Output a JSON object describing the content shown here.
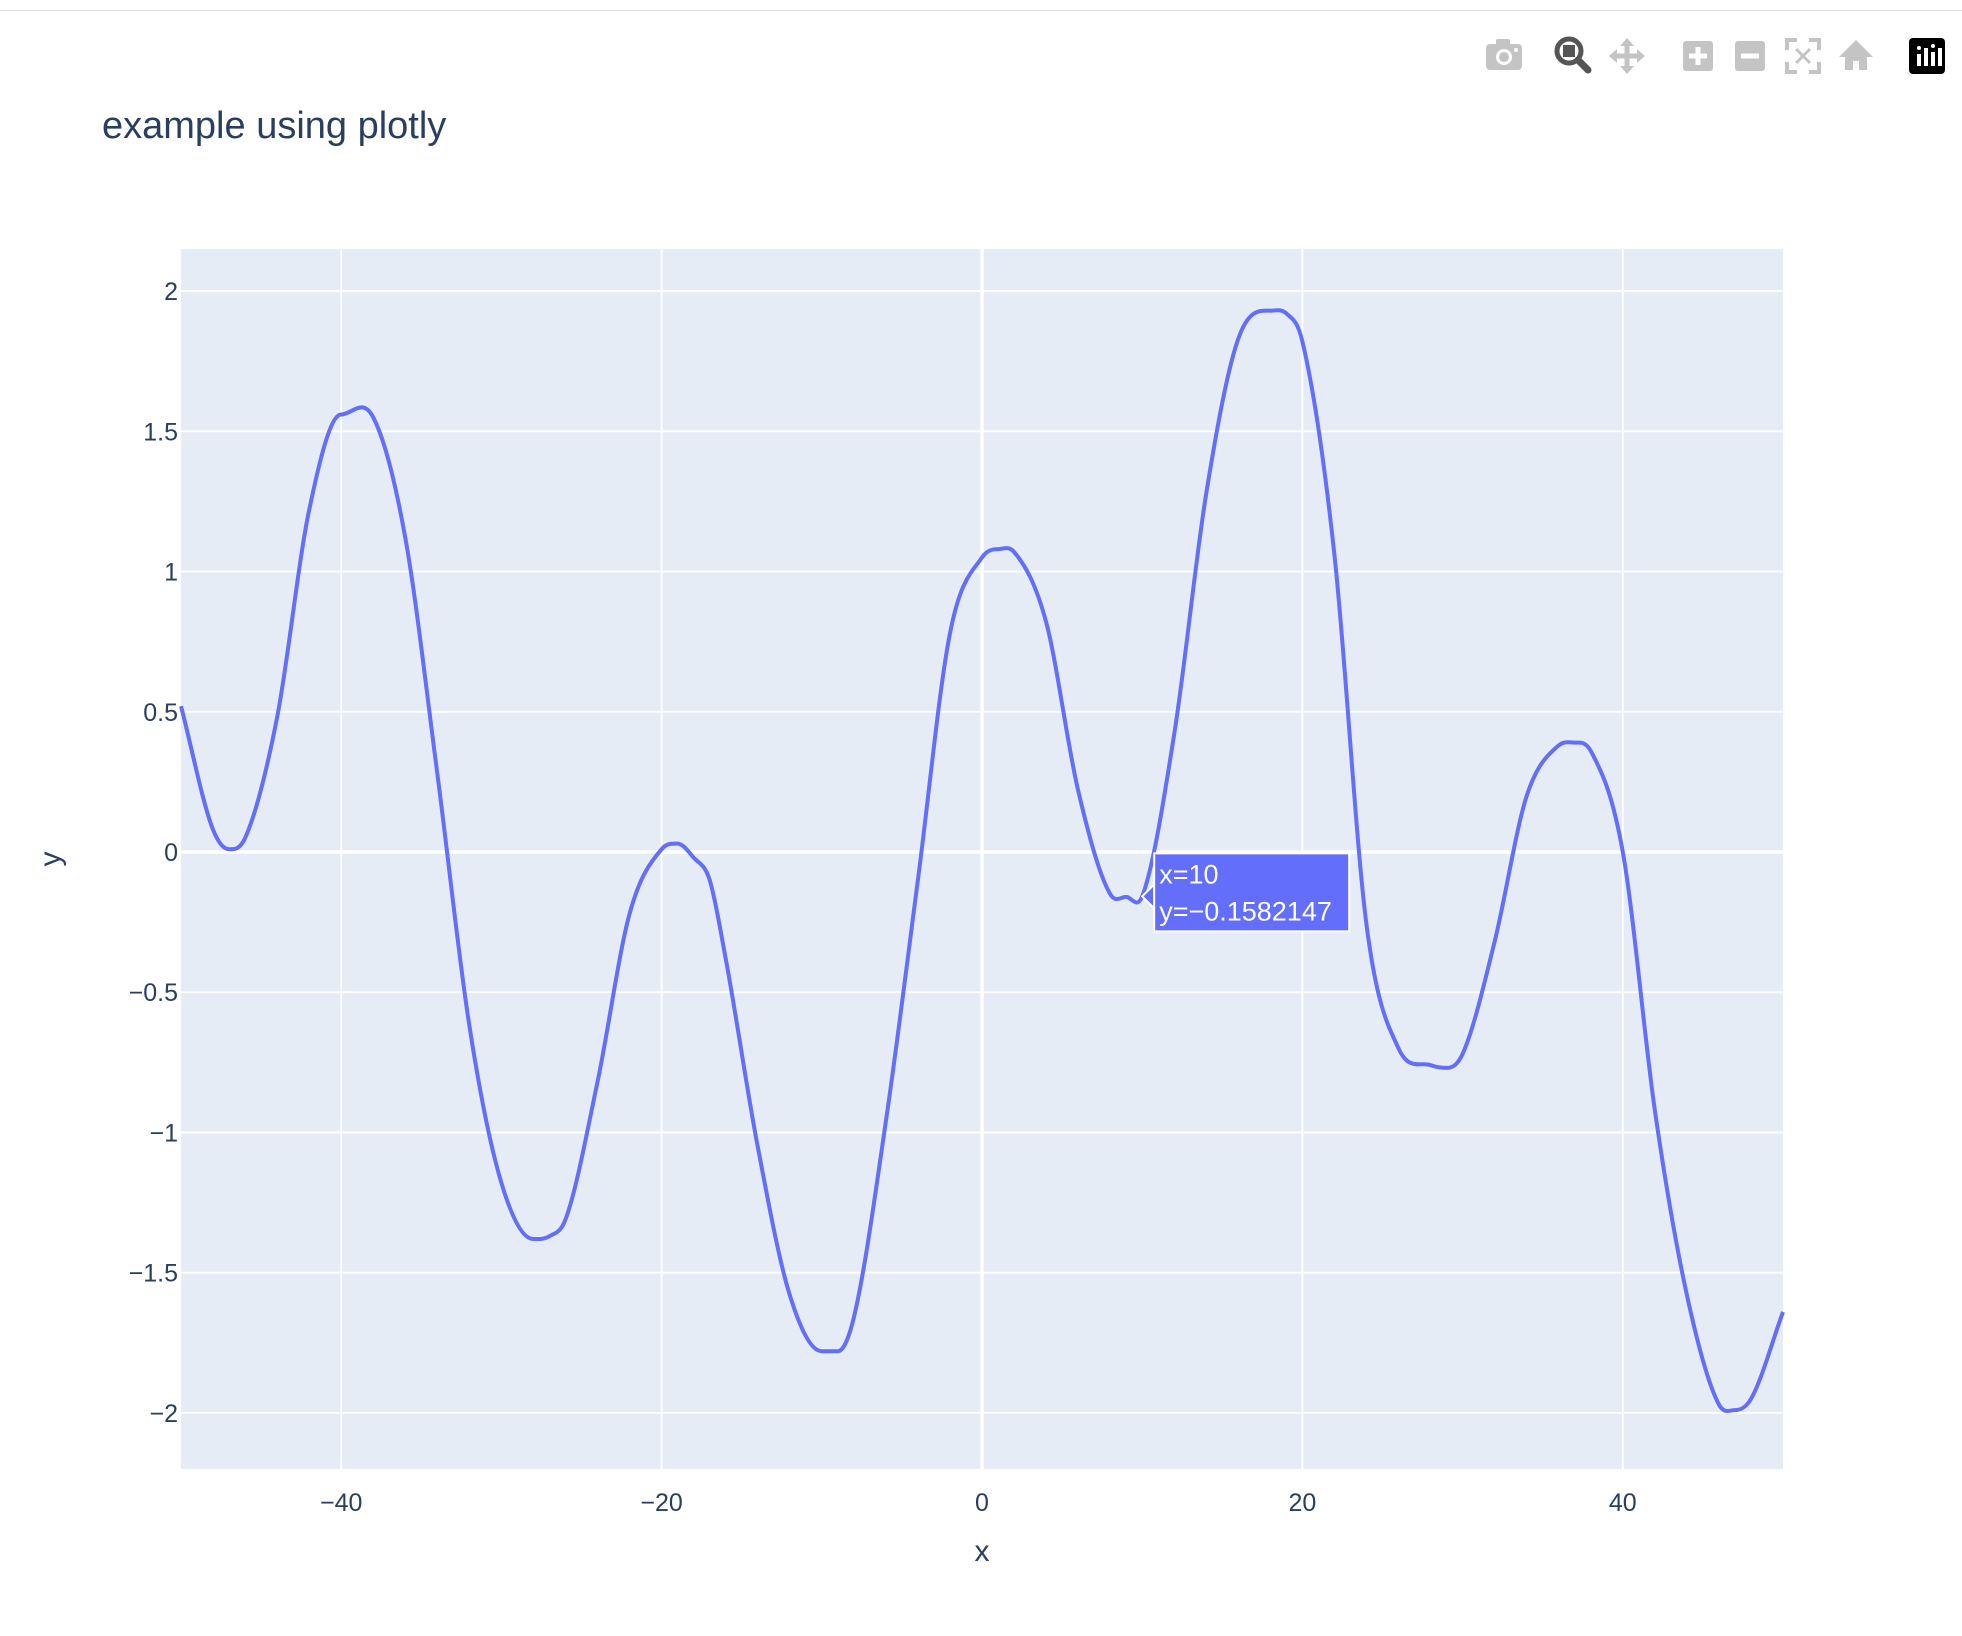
{
  "modebar": {
    "buttons": [
      {
        "name": "camera-icon",
        "tooltip": "Download plot as a png"
      },
      {
        "name": "zoom-icon",
        "tooltip": "Zoom"
      },
      {
        "name": "pan-icon",
        "tooltip": "Pan"
      },
      {
        "name": "zoom-in-icon",
        "tooltip": "Zoom in"
      },
      {
        "name": "zoom-out-icon",
        "tooltip": "Zoom out"
      },
      {
        "name": "autoscale-icon",
        "tooltip": "Autoscale"
      },
      {
        "name": "reset-axes-icon",
        "tooltip": "Reset axes"
      },
      {
        "name": "plotly-logo-icon",
        "tooltip": "Produced with Plotly"
      }
    ],
    "active": "zoom-icon"
  },
  "chart_data": {
    "type": "line",
    "title": "example using plotly",
    "xlabel": "x",
    "ylabel": "y",
    "xlim": [
      -50,
      50
    ],
    "ylim": [
      -2.2,
      2.15
    ],
    "xticks": [
      -40,
      -20,
      0,
      20,
      40
    ],
    "yticks": [
      -2,
      -1.5,
      -1,
      -0.5,
      0,
      0.5,
      1,
      1.5,
      2
    ],
    "grid": true,
    "legend": "none",
    "line_color": "#636efa",
    "plot_bg": "#e5ecf6",
    "series": [
      {
        "x": [
          -50,
          -48,
          -47,
          -46,
          -44,
          -42,
          -40,
          -38,
          -36,
          -34,
          -32,
          -30,
          -28,
          -27,
          -26,
          -24,
          -22,
          -20,
          -19,
          -18,
          -17,
          -16,
          -14,
          -12,
          -10,
          -9,
          -8,
          -6,
          -4,
          -2,
          0,
          1,
          2,
          4,
          6,
          8,
          9,
          10,
          12,
          14,
          16,
          18,
          19,
          20,
          22,
          24,
          26,
          28,
          29,
          30,
          32,
          34,
          36,
          37,
          38,
          40,
          42,
          44,
          46,
          47,
          48,
          50
        ],
        "y": [
          0.52,
          0.08,
          0.01,
          0.05,
          0.48,
          1.22,
          1.56,
          1.55,
          1.12,
          0.28,
          -0.62,
          -1.18,
          -1.38,
          -1.37,
          -1.31,
          -0.82,
          -0.22,
          0.01,
          0.03,
          -0.02,
          -0.1,
          -0.38,
          -1.05,
          -1.58,
          -1.78,
          -1.78,
          -1.66,
          -0.96,
          -0.1,
          0.78,
          1.05,
          1.08,
          1.07,
          0.82,
          0.22,
          -0.15,
          -0.16,
          -0.158,
          0.42,
          1.28,
          1.83,
          1.93,
          1.92,
          1.82,
          1.06,
          -0.26,
          -0.7,
          -0.76,
          -0.77,
          -0.72,
          -0.32,
          0.2,
          0.38,
          0.39,
          0.36,
          0.0,
          -0.92,
          -1.58,
          -1.97,
          -1.99,
          -1.95,
          -1.64
        ]
      }
    ],
    "hover": {
      "x": 10,
      "y": -0.1582147,
      "line1": "x=10",
      "line2": "y=−0.1582147"
    }
  }
}
